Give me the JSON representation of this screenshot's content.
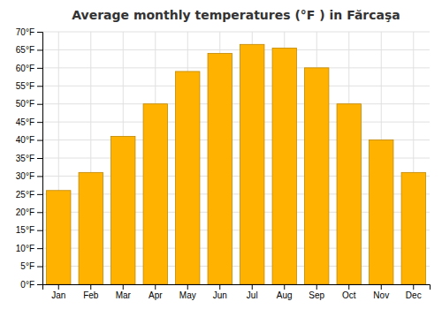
{
  "chart_data": {
    "type": "bar",
    "title": "Average monthly temperatures (°F ) in Fărcaşa",
    "categories": [
      "Jan",
      "Feb",
      "Mar",
      "Apr",
      "May",
      "Jun",
      "Jul",
      "Aug",
      "Sep",
      "Oct",
      "Nov",
      "Dec"
    ],
    "values": [
      26,
      31,
      41,
      50,
      59,
      64,
      66.5,
      65.5,
      60,
      50,
      40,
      31
    ],
    "color": "#FFB300",
    "ylim": [
      0,
      70
    ],
    "yticks": [
      {
        "value": 0,
        "label": "0°F"
      },
      {
        "value": 5,
        "label": "5°F"
      },
      {
        "value": 10,
        "label": "10°F"
      },
      {
        "value": 15,
        "label": "15°F"
      },
      {
        "value": 20,
        "label": "20°F"
      },
      {
        "value": 25,
        "label": "25°F"
      },
      {
        "value": 30,
        "label": "30°F"
      },
      {
        "value": 35,
        "label": "35°F"
      },
      {
        "value": 40,
        "label": "40°F"
      },
      {
        "value": 45,
        "label": "45°F"
      },
      {
        "value": 50,
        "label": "50°F"
      },
      {
        "value": 55,
        "label": "55°F"
      },
      {
        "value": 60,
        "label": "60°F"
      },
      {
        "value": 65,
        "label": "65°F"
      },
      {
        "value": 70,
        "label": "70°F"
      }
    ],
    "grid": true
  }
}
